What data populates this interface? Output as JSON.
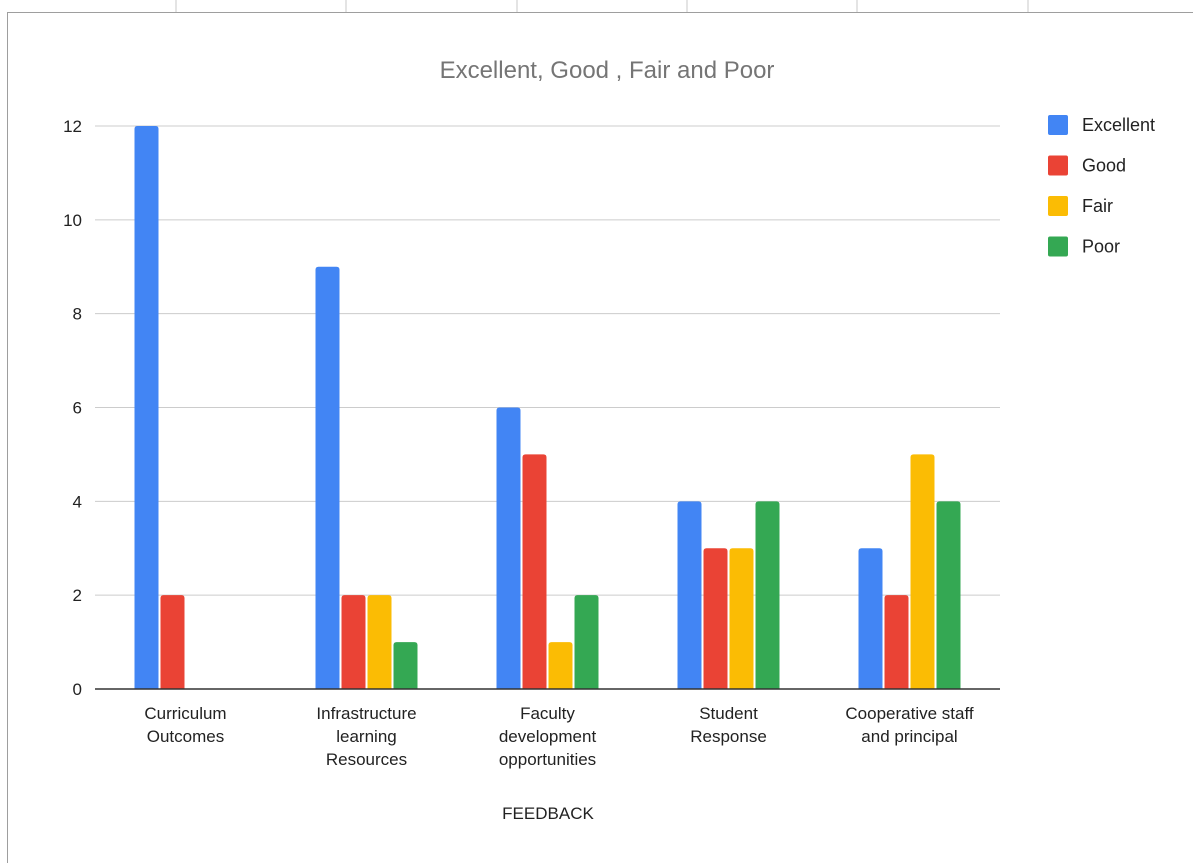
{
  "chart_data": {
    "type": "bar",
    "title": "Excellent, Good , Fair and Poor",
    "xlabel": "FEEDBACK",
    "ylabel": "",
    "ylim": [
      0,
      12
    ],
    "yticks": [
      0,
      2,
      4,
      6,
      8,
      10,
      12
    ],
    "grid": true,
    "legend_position": "right",
    "categories": [
      [
        "Curriculum",
        "Outcomes"
      ],
      [
        "Infrastructure",
        "learning",
        "Resources"
      ],
      [
        "Faculty",
        "development",
        "opportunities"
      ],
      [
        "Student",
        "Response"
      ],
      [
        "Cooperative staff",
        "and principal"
      ]
    ],
    "series": [
      {
        "name": "Excellent",
        "color": "#4285f4",
        "values": [
          12,
          9,
          6,
          4,
          3
        ]
      },
      {
        "name": "Good",
        "color": "#ea4335",
        "values": [
          2,
          2,
          5,
          3,
          2
        ]
      },
      {
        "name": "Fair",
        "color": "#fbbc04",
        "values": [
          0,
          2,
          1,
          3,
          5
        ]
      },
      {
        "name": "Poor",
        "color": "#34a853",
        "values": [
          0,
          1,
          2,
          4,
          4
        ]
      }
    ]
  }
}
